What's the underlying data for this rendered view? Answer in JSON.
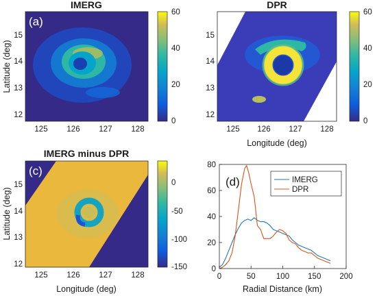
{
  "chart_data": [
    {
      "type": "heatmap",
      "panel_label": "(a)",
      "title": "IMERG",
      "xlabel": "",
      "ylabel": "Latitude (deg)",
      "xlim": [
        124.5,
        128.3
      ],
      "ylim": [
        11.8,
        15.7
      ],
      "xticks": [
        "125",
        "126",
        "127",
        "128"
      ],
      "yticks": [
        "12",
        "13",
        "14",
        "15"
      ],
      "colorbar": {
        "min": 0,
        "max": 60,
        "ticks": [
          "0",
          "20",
          "40",
          "60"
        ]
      },
      "field": {
        "center": [
          126.1,
          13.9
        ],
        "ring_radius_deg": 0.45,
        "ring_peak": 45,
        "background": 6
      }
    },
    {
      "type": "heatmap",
      "panel_label": "(b)",
      "title": "DPR",
      "xlabel": "Longitude (deg)",
      "ylabel": "",
      "xlim": [
        124.5,
        128.3
      ],
      "ylim": [
        11.8,
        15.7
      ],
      "xticks": [
        "125",
        "126",
        "127",
        "128"
      ],
      "yticks": [
        "12",
        "13",
        "14",
        "15"
      ],
      "colorbar": {
        "min": 0,
        "max": 60,
        "ticks": [
          "0",
          "20",
          "40",
          "60"
        ]
      },
      "field": {
        "center": [
          126.3,
          13.95
        ],
        "ring_radius_deg": 0.35,
        "ring_peak": 60,
        "background": 4
      }
    },
    {
      "type": "heatmap",
      "panel_label": "(c)",
      "title": "IMERG minus DPR",
      "xlabel": "Longitude (deg)",
      "ylabel": "Latitude (deg)",
      "xlim": [
        124.5,
        128.3
      ],
      "ylim": [
        11.8,
        15.7
      ],
      "xticks": [
        "125",
        "126",
        "127",
        "128"
      ],
      "yticks": [
        "12",
        "13",
        "14",
        "15"
      ],
      "colorbar": {
        "min": -150,
        "max": 30,
        "ticks": [
          "0",
          "-50",
          "-100",
          "-150"
        ]
      },
      "field": {
        "center": [
          126.3,
          13.95
        ],
        "ring_radius_deg": 0.32,
        "ring_min": -110,
        "swath_value": 10,
        "outside_value": -150
      }
    },
    {
      "type": "line",
      "panel_label": "(d)",
      "title": "",
      "xlabel": "Radial Distance (km)",
      "ylabel": "",
      "xlim": [
        0,
        200
      ],
      "ylim": [
        0,
        80
      ],
      "xticks": [
        0,
        50,
        100,
        150,
        200
      ],
      "yticks": [
        0,
        20,
        40,
        60,
        80
      ],
      "legend": "top-right",
      "series": [
        {
          "name": "IMERG",
          "color": "#1f77b4",
          "x": [
            0,
            5,
            10,
            15,
            20,
            25,
            30,
            35,
            40,
            45,
            50,
            55,
            60,
            65,
            70,
            75,
            80,
            85,
            90,
            95,
            100,
            105,
            110,
            115,
            120,
            125,
            130,
            135,
            140,
            145,
            150,
            155,
            160,
            165,
            170,
            175
          ],
          "y": [
            1,
            3,
            8,
            14,
            20,
            26,
            31,
            35,
            37,
            38,
            37,
            39,
            37,
            36,
            36,
            35,
            33,
            30,
            29,
            28,
            27,
            26,
            25,
            22,
            20,
            18,
            17,
            16,
            15,
            14,
            12,
            10,
            9,
            8,
            7,
            6
          ]
        },
        {
          "name": "DPR",
          "color": "#d95319",
          "x": [
            0,
            5,
            10,
            15,
            20,
            25,
            30,
            35,
            40,
            43,
            46,
            50,
            55,
            60,
            65,
            70,
            75,
            80,
            85,
            90,
            95,
            100,
            105,
            110,
            115,
            120,
            125,
            130,
            135,
            140,
            145,
            150,
            155,
            160,
            165,
            170,
            175
          ],
          "y": [
            0,
            1,
            3,
            6,
            12,
            25,
            45,
            65,
            77,
            79,
            74,
            65,
            55,
            33,
            30,
            23,
            23,
            23,
            25,
            28,
            30,
            29,
            27,
            22,
            20,
            19,
            16,
            14,
            13,
            12,
            12,
            10,
            8,
            7,
            6,
            5,
            4
          ]
        }
      ]
    }
  ]
}
